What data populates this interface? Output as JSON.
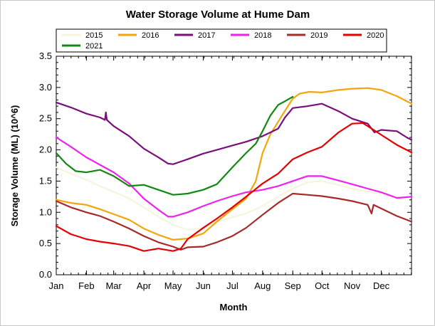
{
  "chart_data": {
    "type": "line",
    "title": "Water Storage Volume at Hume Dam",
    "xlabel": "Month",
    "ylabel": "Storage Volume (ML) (10^6)",
    "x_domain": [
      0,
      365
    ],
    "xlim": [
      "Jan",
      "Dec"
    ],
    "ylim": [
      0.0,
      3.5
    ],
    "grid": false,
    "legend_position": "top",
    "x_ticks": [
      {
        "label": "Jan",
        "day": 0
      },
      {
        "label": "Feb",
        "day": 31
      },
      {
        "label": "Mar",
        "day": 59
      },
      {
        "label": "Apr",
        "day": 90
      },
      {
        "label": "May",
        "day": 120
      },
      {
        "label": "Jun",
        "day": 151
      },
      {
        "label": "Jul",
        "day": 181
      },
      {
        "label": "Aug",
        "day": 212
      },
      {
        "label": "Sep",
        "day": 243
      },
      {
        "label": "Oct",
        "day": 273
      },
      {
        "label": "Nov",
        "day": 304
      },
      {
        "label": "Dec",
        "day": 334
      }
    ],
    "y_ticks": [
      "0.0",
      "0.5",
      "1.0",
      "1.5",
      "2.0",
      "2.5",
      "3.0",
      "3.5"
    ],
    "y_tick_values": [
      0,
      0.5,
      1.0,
      1.5,
      2.0,
      2.5,
      3.0,
      3.5
    ],
    "series": [
      {
        "name": "2015",
        "color": "#f5f5dc",
        "points": [
          [
            0,
            1.72
          ],
          [
            15,
            1.62
          ],
          [
            31,
            1.52
          ],
          [
            45,
            1.42
          ],
          [
            59,
            1.33
          ],
          [
            75,
            1.22
          ],
          [
            90,
            1.08
          ],
          [
            105,
            0.93
          ],
          [
            120,
            0.8
          ],
          [
            135,
            0.72
          ],
          [
            151,
            0.75
          ],
          [
            165,
            0.85
          ],
          [
            181,
            0.92
          ],
          [
            195,
            0.98
          ],
          [
            212,
            1.1
          ],
          [
            228,
            1.25
          ],
          [
            243,
            1.38
          ],
          [
            258,
            1.48
          ],
          [
            273,
            1.5
          ],
          [
            290,
            1.44
          ],
          [
            304,
            1.38
          ],
          [
            320,
            1.33
          ],
          [
            334,
            1.3
          ]
        ]
      },
      {
        "name": "2016",
        "color": "#f2a50c",
        "points": [
          [
            0,
            1.2
          ],
          [
            15,
            1.15
          ],
          [
            31,
            1.12
          ],
          [
            45,
            1.05
          ],
          [
            59,
            0.97
          ],
          [
            75,
            0.88
          ],
          [
            90,
            0.74
          ],
          [
            105,
            0.64
          ],
          [
            120,
            0.56
          ],
          [
            135,
            0.58
          ],
          [
            151,
            0.66
          ],
          [
            165,
            0.85
          ],
          [
            181,
            1.05
          ],
          [
            195,
            1.22
          ],
          [
            205,
            1.5
          ],
          [
            212,
            1.95
          ],
          [
            220,
            2.25
          ],
          [
            228,
            2.45
          ],
          [
            236,
            2.65
          ],
          [
            243,
            2.82
          ],
          [
            250,
            2.9
          ],
          [
            260,
            2.93
          ],
          [
            273,
            2.92
          ],
          [
            290,
            2.96
          ],
          [
            304,
            2.98
          ],
          [
            320,
            2.99
          ],
          [
            334,
            2.96
          ],
          [
            350,
            2.86
          ],
          [
            365,
            2.74
          ]
        ]
      },
      {
        "name": "2017",
        "color": "#7b0e7b",
        "points": [
          [
            0,
            2.76
          ],
          [
            15,
            2.68
          ],
          [
            31,
            2.58
          ],
          [
            45,
            2.52
          ],
          [
            50,
            2.48
          ],
          [
            51,
            2.6
          ],
          [
            52,
            2.48
          ],
          [
            59,
            2.38
          ],
          [
            75,
            2.22
          ],
          [
            90,
            2.02
          ],
          [
            105,
            1.88
          ],
          [
            115,
            1.78
          ],
          [
            120,
            1.77
          ],
          [
            135,
            1.85
          ],
          [
            151,
            1.94
          ],
          [
            165,
            2.0
          ],
          [
            181,
            2.07
          ],
          [
            195,
            2.13
          ],
          [
            212,
            2.22
          ],
          [
            228,
            2.34
          ],
          [
            235,
            2.52
          ],
          [
            243,
            2.67
          ],
          [
            258,
            2.7
          ],
          [
            273,
            2.74
          ],
          [
            290,
            2.62
          ],
          [
            304,
            2.5
          ],
          [
            320,
            2.42
          ],
          [
            327,
            2.28
          ],
          [
            334,
            2.32
          ],
          [
            350,
            2.3
          ],
          [
            360,
            2.2
          ],
          [
            365,
            2.16
          ]
        ]
      },
      {
        "name": "2018",
        "color": "#ee22ee",
        "points": [
          [
            0,
            2.2
          ],
          [
            15,
            2.05
          ],
          [
            31,
            1.88
          ],
          [
            45,
            1.76
          ],
          [
            59,
            1.64
          ],
          [
            75,
            1.46
          ],
          [
            90,
            1.22
          ],
          [
            105,
            1.04
          ],
          [
            115,
            0.93
          ],
          [
            120,
            0.93
          ],
          [
            135,
            1.0
          ],
          [
            151,
            1.1
          ],
          [
            165,
            1.18
          ],
          [
            181,
            1.26
          ],
          [
            195,
            1.32
          ],
          [
            212,
            1.36
          ],
          [
            228,
            1.42
          ],
          [
            243,
            1.5
          ],
          [
            258,
            1.58
          ],
          [
            273,
            1.58
          ],
          [
            290,
            1.51
          ],
          [
            304,
            1.45
          ],
          [
            320,
            1.38
          ],
          [
            334,
            1.32
          ],
          [
            350,
            1.23
          ],
          [
            365,
            1.25
          ]
        ]
      },
      {
        "name": "2019",
        "color": "#a52a2a",
        "points": [
          [
            0,
            1.18
          ],
          [
            15,
            1.08
          ],
          [
            31,
            1.0
          ],
          [
            45,
            0.94
          ],
          [
            59,
            0.85
          ],
          [
            75,
            0.74
          ],
          [
            90,
            0.62
          ],
          [
            105,
            0.52
          ],
          [
            120,
            0.45
          ],
          [
            128,
            0.4
          ],
          [
            135,
            0.44
          ],
          [
            151,
            0.45
          ],
          [
            165,
            0.52
          ],
          [
            181,
            0.62
          ],
          [
            195,
            0.75
          ],
          [
            212,
            0.96
          ],
          [
            228,
            1.15
          ],
          [
            243,
            1.3
          ],
          [
            258,
            1.28
          ],
          [
            273,
            1.26
          ],
          [
            290,
            1.22
          ],
          [
            304,
            1.18
          ],
          [
            320,
            1.12
          ],
          [
            324,
            0.98
          ],
          [
            326,
            1.12
          ],
          [
            334,
            1.06
          ],
          [
            350,
            0.94
          ],
          [
            365,
            0.85
          ]
        ]
      },
      {
        "name": "2020",
        "color": "#e50000",
        "points": [
          [
            0,
            0.78
          ],
          [
            15,
            0.65
          ],
          [
            31,
            0.57
          ],
          [
            45,
            0.53
          ],
          [
            59,
            0.5
          ],
          [
            75,
            0.46
          ],
          [
            90,
            0.38
          ],
          [
            105,
            0.42
          ],
          [
            120,
            0.38
          ],
          [
            128,
            0.42
          ],
          [
            135,
            0.57
          ],
          [
            151,
            0.75
          ],
          [
            165,
            0.9
          ],
          [
            181,
            1.08
          ],
          [
            195,
            1.25
          ],
          [
            212,
            1.46
          ],
          [
            228,
            1.62
          ],
          [
            243,
            1.85
          ],
          [
            258,
            1.96
          ],
          [
            273,
            2.05
          ],
          [
            290,
            2.28
          ],
          [
            304,
            2.42
          ],
          [
            315,
            2.43
          ],
          [
            320,
            2.38
          ],
          [
            334,
            2.24
          ],
          [
            350,
            2.08
          ],
          [
            365,
            1.96
          ]
        ]
      },
      {
        "name": "2021",
        "color": "#118811",
        "points": [
          [
            0,
            1.95
          ],
          [
            10,
            1.78
          ],
          [
            20,
            1.66
          ],
          [
            31,
            1.64
          ],
          [
            45,
            1.68
          ],
          [
            59,
            1.58
          ],
          [
            75,
            1.42
          ],
          [
            90,
            1.44
          ],
          [
            105,
            1.36
          ],
          [
            120,
            1.28
          ],
          [
            135,
            1.3
          ],
          [
            151,
            1.36
          ],
          [
            165,
            1.45
          ],
          [
            181,
            1.72
          ],
          [
            195,
            1.95
          ],
          [
            205,
            2.1
          ],
          [
            212,
            2.3
          ],
          [
            220,
            2.55
          ],
          [
            228,
            2.72
          ],
          [
            235,
            2.78
          ],
          [
            243,
            2.85
          ]
        ]
      }
    ]
  }
}
